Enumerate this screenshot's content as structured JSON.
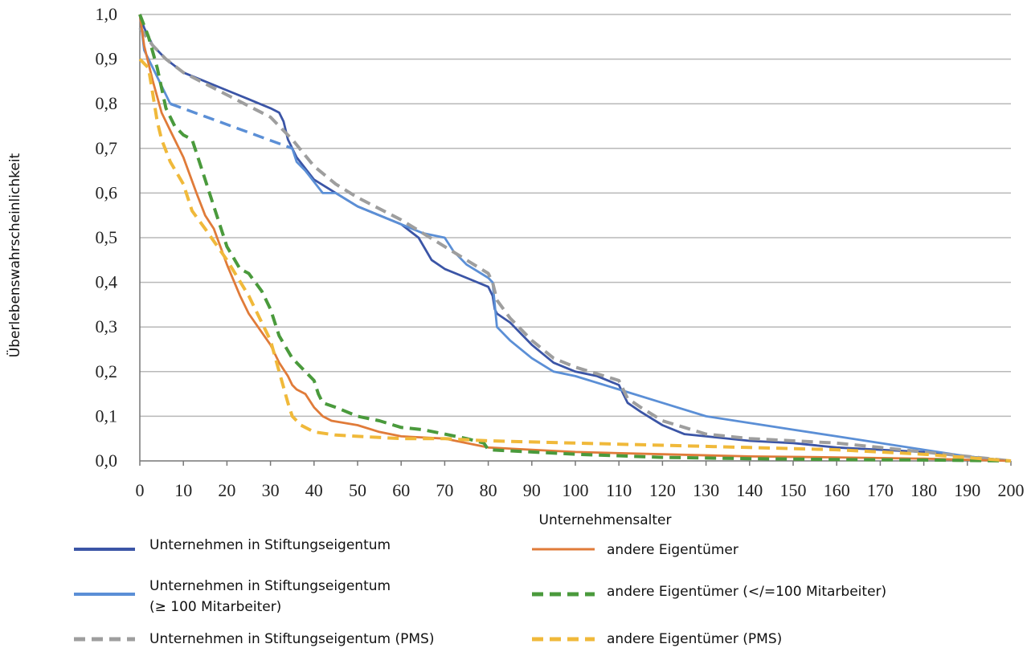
{
  "chart_data": {
    "type": "line",
    "xlabel": "Unternehmensalter",
    "ylabel": "Überlebenswahrscheinlichkeit",
    "xlim": [
      0,
      200
    ],
    "ylim": [
      0,
      1
    ],
    "x_ticks": [
      0,
      10,
      20,
      30,
      40,
      50,
      60,
      70,
      80,
      90,
      100,
      110,
      120,
      130,
      140,
      150,
      160,
      170,
      180,
      190,
      200
    ],
    "y_ticks": [
      "0,0",
      "0,1",
      "0,2",
      "0,3",
      "0,4",
      "0,5",
      "0,6",
      "0,7",
      "0,8",
      "0,9",
      "1,0"
    ],
    "grid": "horizontal",
    "legend_position": "bottom",
    "series": [
      {
        "name": "Unternehmen in Stiftungseigentum",
        "color": "#3b55a6",
        "dash": "solid",
        "points": [
          [
            0,
            1.0
          ],
          [
            1,
            0.97
          ],
          [
            3,
            0.93
          ],
          [
            6,
            0.9
          ],
          [
            10,
            0.87
          ],
          [
            15,
            0.85
          ],
          [
            20,
            0.83
          ],
          [
            25,
            0.81
          ],
          [
            30,
            0.79
          ],
          [
            32,
            0.78
          ],
          [
            33,
            0.76
          ],
          [
            34,
            0.72
          ],
          [
            36,
            0.68
          ],
          [
            40,
            0.63
          ],
          [
            45,
            0.6
          ],
          [
            50,
            0.57
          ],
          [
            55,
            0.55
          ],
          [
            60,
            0.53
          ],
          [
            64,
            0.5
          ],
          [
            67,
            0.45
          ],
          [
            70,
            0.43
          ],
          [
            75,
            0.41
          ],
          [
            80,
            0.39
          ],
          [
            81,
            0.37
          ],
          [
            81.5,
            0.34
          ],
          [
            82,
            0.33
          ],
          [
            85,
            0.31
          ],
          [
            90,
            0.26
          ],
          [
            95,
            0.22
          ],
          [
            100,
            0.2
          ],
          [
            105,
            0.19
          ],
          [
            110,
            0.17
          ],
          [
            112,
            0.13
          ],
          [
            115,
            0.11
          ],
          [
            120,
            0.08
          ],
          [
            125,
            0.06
          ],
          [
            130,
            0.055
          ],
          [
            140,
            0.045
          ],
          [
            150,
            0.04
          ],
          [
            160,
            0.03
          ],
          [
            170,
            0.025
          ],
          [
            180,
            0.02
          ],
          [
            190,
            0.01
          ],
          [
            200,
            0.0
          ]
        ]
      },
      {
        "name": "Unternehmen in Stiftungseigentum (≥ 100 Mitarbeiter)",
        "color": "#5b8fd6",
        "dash": "solid",
        "points": [
          [
            0,
            1.0
          ],
          [
            1,
            0.92
          ],
          [
            3,
            0.88
          ],
          [
            5,
            0.84
          ],
          [
            7,
            0.8
          ]
        ],
        "dashed_segment": [
          [
            7,
            0.8
          ],
          [
            35,
            0.7
          ]
        ],
        "points_after": [
          [
            35,
            0.7
          ],
          [
            36,
            0.67
          ],
          [
            38,
            0.65
          ],
          [
            42,
            0.6
          ],
          [
            45,
            0.6
          ],
          [
            50,
            0.57
          ],
          [
            55,
            0.55
          ],
          [
            60,
            0.53
          ],
          [
            65,
            0.51
          ],
          [
            70,
            0.5
          ],
          [
            72,
            0.47
          ],
          [
            75,
            0.44
          ],
          [
            80,
            0.41
          ],
          [
            81,
            0.4
          ],
          [
            81.5,
            0.35
          ],
          [
            82,
            0.3
          ],
          [
            85,
            0.27
          ],
          [
            90,
            0.23
          ],
          [
            95,
            0.2
          ],
          [
            100,
            0.19
          ],
          [
            110,
            0.16
          ],
          [
            120,
            0.13
          ],
          [
            130,
            0.1
          ],
          [
            140,
            0.085
          ],
          [
            150,
            0.07
          ],
          [
            160,
            0.055
          ],
          [
            170,
            0.04
          ],
          [
            180,
            0.025
          ],
          [
            190,
            0.01
          ],
          [
            200,
            0.0
          ]
        ]
      },
      {
        "name": "Unternehmen in Stiftungseigentum (PMS)",
        "color": "#9e9e9e",
        "dash": "dashed",
        "points": [
          [
            0,
            0.97
          ],
          [
            3,
            0.93
          ],
          [
            6,
            0.9
          ],
          [
            10,
            0.87
          ],
          [
            20,
            0.82
          ],
          [
            30,
            0.77
          ],
          [
            32,
            0.75
          ],
          [
            35,
            0.72
          ],
          [
            40,
            0.66
          ],
          [
            45,
            0.62
          ],
          [
            50,
            0.59
          ],
          [
            60,
            0.54
          ],
          [
            65,
            0.51
          ],
          [
            70,
            0.48
          ],
          [
            75,
            0.45
          ],
          [
            80,
            0.42
          ],
          [
            81,
            0.4
          ],
          [
            82,
            0.36
          ],
          [
            85,
            0.32
          ],
          [
            90,
            0.27
          ],
          [
            95,
            0.23
          ],
          [
            100,
            0.21
          ],
          [
            110,
            0.18
          ],
          [
            112,
            0.14
          ],
          [
            115,
            0.12
          ],
          [
            120,
            0.09
          ],
          [
            130,
            0.06
          ],
          [
            140,
            0.05
          ],
          [
            150,
            0.045
          ],
          [
            160,
            0.04
          ],
          [
            170,
            0.03
          ],
          [
            180,
            0.02
          ],
          [
            190,
            0.01
          ],
          [
            200,
            0.0
          ]
        ]
      },
      {
        "name": "andere Eigentümer",
        "color": "#e07b39",
        "dash": "solid",
        "points": [
          [
            0,
            1.0
          ],
          [
            1,
            0.93
          ],
          [
            3,
            0.85
          ],
          [
            5,
            0.78
          ],
          [
            7,
            0.74
          ],
          [
            10,
            0.68
          ],
          [
            13,
            0.6
          ],
          [
            15,
            0.55
          ],
          [
            17,
            0.52
          ],
          [
            20,
            0.44
          ],
          [
            23,
            0.37
          ],
          [
            25,
            0.33
          ],
          [
            30,
            0.26
          ],
          [
            32,
            0.22
          ],
          [
            34,
            0.19
          ],
          [
            35,
            0.17
          ],
          [
            36,
            0.16
          ],
          [
            38,
            0.15
          ],
          [
            40,
            0.12
          ],
          [
            42,
            0.1
          ],
          [
            44,
            0.09
          ],
          [
            50,
            0.08
          ],
          [
            55,
            0.065
          ],
          [
            60,
            0.055
          ],
          [
            70,
            0.05
          ],
          [
            80,
            0.03
          ],
          [
            90,
            0.025
          ],
          [
            100,
            0.02
          ],
          [
            120,
            0.015
          ],
          [
            140,
            0.01
          ],
          [
            160,
            0.008
          ],
          [
            180,
            0.005
          ],
          [
            200,
            0.0
          ]
        ]
      },
      {
        "name": "andere Eigentümer (</=100 Mitarbeiter)",
        "color": "#4a9a3c",
        "dash": "dashed",
        "points": [
          [
            0,
            1.0
          ],
          [
            2,
            0.95
          ],
          [
            4,
            0.88
          ],
          [
            6,
            0.79
          ],
          [
            8,
            0.75
          ],
          [
            10,
            0.73
          ],
          [
            12,
            0.72
          ],
          [
            14,
            0.66
          ],
          [
            17,
            0.57
          ],
          [
            20,
            0.48
          ],
          [
            23,
            0.43
          ],
          [
            25,
            0.42
          ],
          [
            28,
            0.38
          ],
          [
            30,
            0.34
          ],
          [
            32,
            0.28
          ],
          [
            35,
            0.23
          ],
          [
            38,
            0.2
          ],
          [
            40,
            0.18
          ],
          [
            41,
            0.15
          ],
          [
            42,
            0.13
          ],
          [
            45,
            0.12
          ],
          [
            50,
            0.1
          ],
          [
            55,
            0.09
          ],
          [
            60,
            0.075
          ],
          [
            65,
            0.07
          ],
          [
            70,
            0.06
          ],
          [
            75,
            0.05
          ],
          [
            79,
            0.04
          ],
          [
            80,
            0.025
          ],
          [
            90,
            0.02
          ],
          [
            100,
            0.015
          ],
          [
            120,
            0.008
          ],
          [
            140,
            0.005
          ],
          [
            160,
            0.003
          ],
          [
            180,
            0.002
          ],
          [
            200,
            0.0
          ]
        ]
      },
      {
        "name": "andere Eigentümer (PMS)",
        "color": "#f0b93a",
        "dash": "dashed",
        "points": [
          [
            0,
            0.9
          ],
          [
            2,
            0.88
          ],
          [
            3,
            0.82
          ],
          [
            4,
            0.76
          ],
          [
            5,
            0.72
          ],
          [
            7,
            0.67
          ],
          [
            10,
            0.62
          ],
          [
            12,
            0.56
          ],
          [
            15,
            0.52
          ],
          [
            20,
            0.45
          ],
          [
            25,
            0.37
          ],
          [
            30,
            0.27
          ],
          [
            32,
            0.2
          ],
          [
            34,
            0.13
          ],
          [
            35,
            0.1
          ],
          [
            37,
            0.08
          ],
          [
            40,
            0.065
          ],
          [
            45,
            0.058
          ],
          [
            50,
            0.055
          ],
          [
            60,
            0.05
          ],
          [
            70,
            0.05
          ],
          [
            80,
            0.045
          ],
          [
            100,
            0.04
          ],
          [
            120,
            0.035
          ],
          [
            140,
            0.03
          ],
          [
            160,
            0.025
          ],
          [
            180,
            0.015
          ],
          [
            200,
            0.0
          ]
        ]
      }
    ]
  },
  "legend": {
    "left": [
      {
        "label": "Unternehmen in Stiftungseigentum",
        "label2": ""
      },
      {
        "label": "Unternehmen in Stiftungseigentum",
        "label2": "(≥ 100 Mitarbeiter)"
      },
      {
        "label": "Unternehmen in Stiftungseigentum (PMS)",
        "label2": ""
      }
    ],
    "right": [
      {
        "label": "andere Eigentümer"
      },
      {
        "label": "andere Eigentümer (</=100 Mitarbeiter)"
      },
      {
        "label": "andere Eigentümer (PMS)"
      }
    ]
  }
}
